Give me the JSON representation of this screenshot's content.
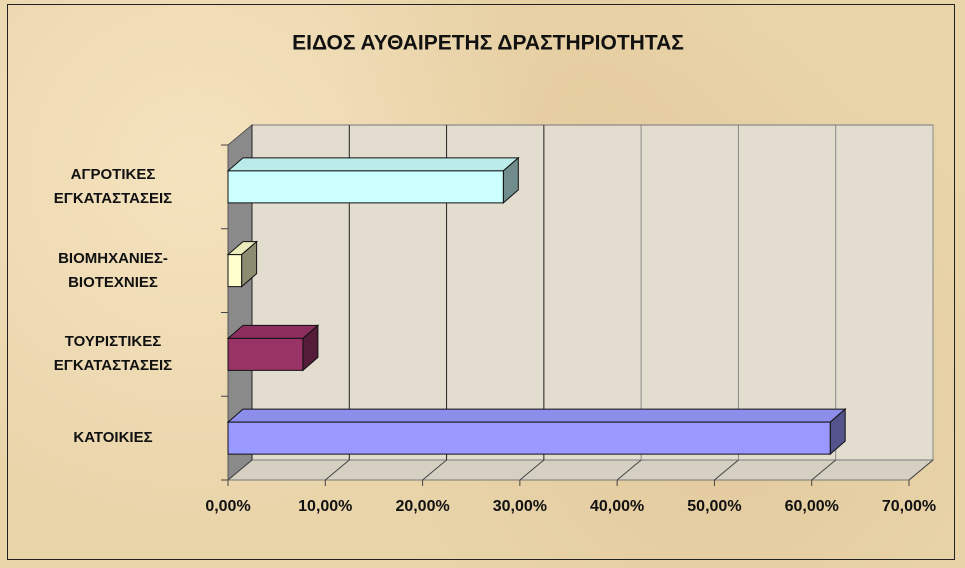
{
  "chart_data": {
    "type": "bar3d-horizontal",
    "title": "ΕΙΔΟΣ ΑΥΘΑΙΡΕΤΗΣ ΔΡΑΣΤΗΡΙΟΤΗΤΑΣ",
    "categories": [
      "ΑΓΡΟΤΙΚΕΣ ΕΓΚΑΤΑΣΤΑΣΕΙΣ",
      "ΒΙΟΜΗΧΑΝΙΕΣ-ΒΙΟΤΕΧΝΙΕΣ",
      "ΤΟΥΡΙΣΤΙΚΕΣ ΕΓΚΑΤΑΣΤΑΣΕΙΣ",
      "ΚΑΤΟΙΚΙΕΣ"
    ],
    "values": [
      28.3,
      1.4,
      7.7,
      61.9
    ],
    "colors": [
      "#ccffff",
      "#ffffcc",
      "#993366",
      "#9999ff"
    ],
    "xlim": [
      0,
      70
    ],
    "xticks": [
      {
        "value": 0,
        "label": "0,00%"
      },
      {
        "value": 10,
        "label": "10,00%"
      },
      {
        "value": 20,
        "label": "20,00%"
      },
      {
        "value": 30,
        "label": "30,00%"
      },
      {
        "value": 40,
        "label": "40,00%"
      },
      {
        "value": 50,
        "label": "50,00%"
      },
      {
        "value": 60,
        "label": "60,00%"
      },
      {
        "value": 70,
        "label": "70,00%"
      }
    ],
    "grid": true
  }
}
